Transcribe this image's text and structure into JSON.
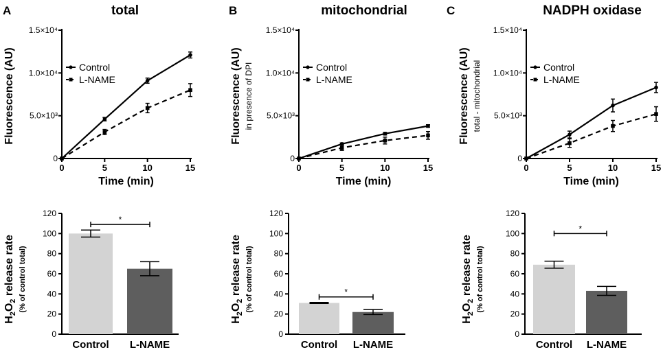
{
  "colors": {
    "axis": "#000000",
    "line": "#000000",
    "bar_control": "#d3d3d3",
    "bar_lname": "#5e5e5e"
  },
  "panels": [
    {
      "letter": "A",
      "title": "total",
      "ylabel_main": "Fluorescence (AU)",
      "ylabel_sub": "",
      "bar_ylabel_main": "H2O2 release rate",
      "bar_ylabel_sub": "(% of control total)"
    },
    {
      "letter": "B",
      "title": "mitochondrial",
      "ylabel_main": "Fluorescence (AU)",
      "ylabel_sub": "in presence of DPI",
      "bar_ylabel_main": "H2O2 release rate",
      "bar_ylabel_sub": "(% of control total)"
    },
    {
      "letter": "C",
      "title": "NADPH oxidase",
      "ylabel_main": "Fluorescence (AU)",
      "ylabel_sub": "total - mitochondrial",
      "bar_ylabel_main": "H2O2 release rate",
      "bar_ylabel_sub": "(% of control total)"
    }
  ],
  "chart_data": [
    {
      "id": "A-line",
      "type": "line",
      "title": "total",
      "xlabel": "Time (min)",
      "ylabel": "Fluorescence (AU)",
      "x": [
        0,
        5,
        10,
        15
      ],
      "xticks": [
        "0",
        "5",
        "10",
        "15"
      ],
      "yticks": [
        "0",
        "5.0×10³",
        "1.0×10⁴",
        "1.5×10⁴"
      ],
      "ylim": [
        0,
        15000
      ],
      "xlim": [
        0,
        15
      ],
      "legend": [
        "Control",
        "L-NAME"
      ],
      "series": [
        {
          "name": "Control",
          "style": "solid",
          "marker": "circle",
          "values": [
            0,
            4600,
            9100,
            12100
          ],
          "err": [
            0,
            200,
            300,
            350
          ]
        },
        {
          "name": "L-NAME",
          "style": "dashed",
          "marker": "square",
          "values": [
            0,
            3100,
            5900,
            8000
          ],
          "err": [
            0,
            300,
            550,
            750
          ]
        }
      ]
    },
    {
      "id": "B-line",
      "type": "line",
      "title": "mitochondrial",
      "xlabel": "Time (min)",
      "ylabel": "Fluorescence (AU)",
      "x": [
        0,
        5,
        10,
        15
      ],
      "xticks": [
        "0",
        "5",
        "10",
        "15"
      ],
      "yticks": [
        "0",
        "5.0×10³",
        "1.0×10⁴",
        "1.5×10⁴"
      ],
      "ylim": [
        0,
        15000
      ],
      "xlim": [
        0,
        15
      ],
      "legend": [
        "Control",
        "L-NAME"
      ],
      "series": [
        {
          "name": "Control",
          "style": "solid",
          "marker": "circle",
          "values": [
            0,
            1700,
            2900,
            3800
          ],
          "err": [
            0,
            120,
            150,
            150
          ]
        },
        {
          "name": "L-NAME",
          "style": "dashed",
          "marker": "square",
          "values": [
            0,
            1250,
            2100,
            2700
          ],
          "err": [
            0,
            300,
            400,
            450
          ]
        }
      ]
    },
    {
      "id": "C-line",
      "type": "line",
      "title": "NADPH oxidase",
      "xlabel": "Time (min)",
      "ylabel": "Fluorescence (AU)",
      "x": [
        0,
        5,
        10,
        15
      ],
      "xticks": [
        "0",
        "5",
        "10",
        "15"
      ],
      "yticks": [
        "0",
        "5.0×10³",
        "1.0×10⁴",
        "1.5×10⁴"
      ],
      "ylim": [
        0,
        15000
      ],
      "xlim": [
        0,
        15
      ],
      "legend": [
        "Control",
        "L-NAME"
      ],
      "series": [
        {
          "name": "Control",
          "style": "solid",
          "marker": "circle",
          "values": [
            0,
            2800,
            6200,
            8300
          ],
          "err": [
            0,
            400,
            750,
            600
          ]
        },
        {
          "name": "L-NAME",
          "style": "dashed",
          "marker": "square",
          "values": [
            0,
            1800,
            3800,
            5200
          ],
          "err": [
            0,
            500,
            650,
            850
          ]
        }
      ]
    },
    {
      "id": "A-bar",
      "type": "bar",
      "categories": [
        "Control",
        "L-NAME"
      ],
      "values": [
        100,
        65
      ],
      "err": [
        3.5,
        7
      ],
      "ylabel": "H2O2 release rate (% of control total)",
      "ylim": [
        0,
        120
      ],
      "yticks": [
        "0",
        "20",
        "40",
        "60",
        "80",
        "100",
        "120"
      ],
      "significance": {
        "label": "*",
        "y": 109
      }
    },
    {
      "id": "B-bar",
      "type": "bar",
      "categories": [
        "Control",
        "L-NAME"
      ],
      "values": [
        31,
        22
      ],
      "err": [
        0.5,
        2.5
      ],
      "ylabel": "H2O2 release rate (% of control total)",
      "ylim": [
        0,
        120
      ],
      "yticks": [
        "0",
        "20",
        "40",
        "60",
        "80",
        "100",
        "120"
      ],
      "significance": {
        "label": "*",
        "y": 37
      }
    },
    {
      "id": "C-bar",
      "type": "bar",
      "categories": [
        "Control",
        "L-NAME"
      ],
      "values": [
        69,
        43
      ],
      "err": [
        3.5,
        4.5
      ],
      "ylabel": "H2O2 release rate (% of control total)",
      "ylim": [
        0,
        120
      ],
      "yticks": [
        "0",
        "20",
        "40",
        "60",
        "80",
        "100",
        "120"
      ],
      "significance": {
        "label": "*",
        "y": 100
      }
    }
  ]
}
